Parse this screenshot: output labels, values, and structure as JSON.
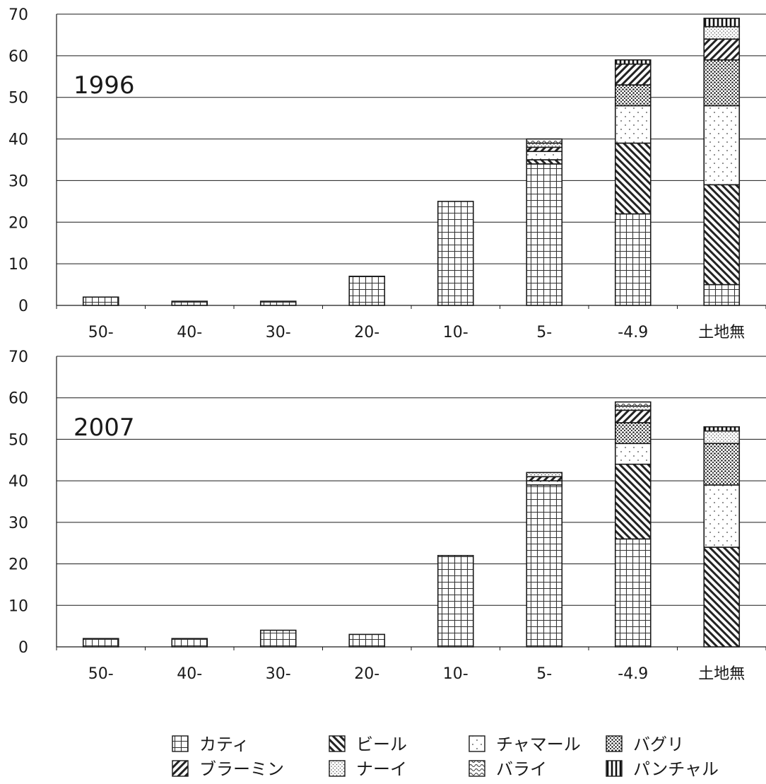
{
  "chart_data": {
    "type": "bar",
    "stacked": true,
    "categories": [
      "50-",
      "40-",
      "30-",
      "20-",
      "10-",
      "5-",
      "-4.9",
      "土地無"
    ],
    "ylim": [
      0,
      70
    ],
    "yticks": [
      0,
      10,
      20,
      30,
      40,
      50,
      60,
      70
    ],
    "grid": true,
    "legend_position": "bottom",
    "series_names": [
      "カティ",
      "ビール",
      "チャマール",
      "バグリ",
      "ブラーミン",
      "ナーイ",
      "バライ",
      "パンチャル"
    ],
    "legend_order": [
      "カティ",
      "ビール",
      "チャマール",
      "バグリ",
      "ブラーミン",
      "ナーイ",
      "バライ",
      "パンチャル"
    ],
    "panels": [
      {
        "year_label": "1996",
        "series": [
          {
            "name": "カティ",
            "pattern": "grid",
            "values": [
              2,
              1,
              1,
              7,
              25,
              34,
              22,
              5
            ]
          },
          {
            "name": "ビール",
            "pattern": "backslash",
            "values": [
              0,
              0,
              0,
              0,
              0,
              1,
              17,
              24
            ]
          },
          {
            "name": "チャマール",
            "pattern": "sparse-dots",
            "values": [
              0,
              0,
              0,
              0,
              0,
              2,
              9,
              19
            ]
          },
          {
            "name": "バグリ",
            "pattern": "dense-dots",
            "values": [
              0,
              0,
              0,
              0,
              0,
              0,
              5,
              11
            ]
          },
          {
            "name": "ブラーミン",
            "pattern": "slash",
            "values": [
              0,
              0,
              0,
              0,
              0,
              1,
              5,
              5
            ]
          },
          {
            "name": "ナーイ",
            "pattern": "fine-dots",
            "values": [
              0,
              0,
              0,
              0,
              0,
              1,
              0,
              3
            ]
          },
          {
            "name": "バライ",
            "pattern": "wave",
            "values": [
              0,
              0,
              0,
              0,
              0,
              1,
              0,
              0
            ]
          },
          {
            "name": "パンチャル",
            "pattern": "vlines",
            "values": [
              0,
              0,
              0,
              0,
              0,
              0,
              1,
              2
            ]
          }
        ]
      },
      {
        "year_label": "2007",
        "series": [
          {
            "name": "カティ",
            "pattern": "grid",
            "values": [
              2,
              2,
              4,
              3,
              22,
              39,
              26,
              0
            ]
          },
          {
            "name": "ビール",
            "pattern": "backslash",
            "values": [
              0,
              0,
              0,
              0,
              0,
              0,
              18,
              24
            ]
          },
          {
            "name": "チャマール",
            "pattern": "sparse-dots",
            "values": [
              0,
              0,
              0,
              0,
              0,
              1,
              5,
              15
            ]
          },
          {
            "name": "バグリ",
            "pattern": "dense-dots",
            "values": [
              0,
              0,
              0,
              0,
              0,
              0,
              5,
              10
            ]
          },
          {
            "name": "ブラーミン",
            "pattern": "slash",
            "values": [
              0,
              0,
              0,
              0,
              0,
              1,
              3,
              0
            ]
          },
          {
            "name": "ナーイ",
            "pattern": "fine-dots",
            "values": [
              0,
              0,
              0,
              0,
              0,
              1,
              1,
              3
            ]
          },
          {
            "name": "バライ",
            "pattern": "wave",
            "values": [
              0,
              0,
              0,
              0,
              0,
              0,
              1,
              0
            ]
          },
          {
            "name": "パンチャル",
            "pattern": "vlines",
            "values": [
              0,
              0,
              0,
              0,
              0,
              0,
              0,
              1
            ]
          }
        ]
      }
    ]
  }
}
